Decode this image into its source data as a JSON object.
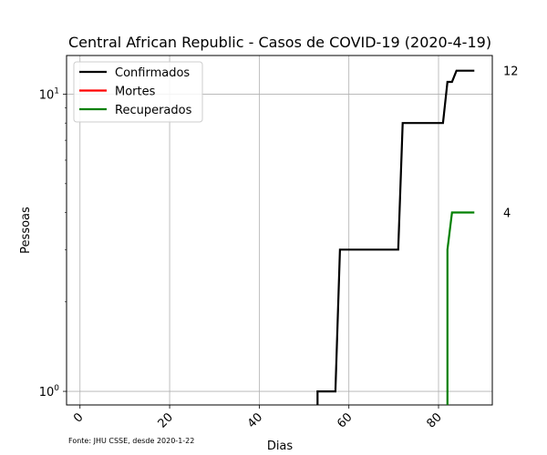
{
  "chart_data": {
    "type": "line",
    "title": "Central African Republic - Casos de COVID-19 (2020-4-19)",
    "xlabel": "Dias",
    "ylabel": "Pessoas",
    "yscale": "log",
    "xlim": [
      -3,
      92
    ],
    "ylim": [
      0.9,
      13.5
    ],
    "xticks": [
      0,
      20,
      40,
      60,
      80
    ],
    "xtick_labels": [
      "0",
      "20",
      "40",
      "60",
      "80"
    ],
    "yticks": [
      1,
      10
    ],
    "ytick_label_base": "10",
    "ytick_label_exponents": [
      "0",
      "1"
    ],
    "grid": true,
    "legend_position": "top-left",
    "series": [
      {
        "name": "Confirmados",
        "color": "#000000",
        "points": [
          [
            53,
            0.9
          ],
          [
            53,
            1
          ],
          [
            57,
            1
          ],
          [
            58,
            3
          ],
          [
            71,
            3
          ],
          [
            72,
            8
          ],
          [
            81,
            8
          ],
          [
            82,
            11
          ],
          [
            83,
            11
          ],
          [
            84,
            12
          ],
          [
            88,
            12
          ]
        ]
      },
      {
        "name": "Mortes",
        "color": "#ff0000",
        "points": []
      },
      {
        "name": "Recuperados",
        "color": "#008000",
        "points": [
          [
            82,
            0.9
          ],
          [
            82,
            3
          ],
          [
            83,
            4
          ],
          [
            88,
            4
          ]
        ]
      }
    ],
    "end_labels": [
      {
        "text": "12",
        "value": 12
      },
      {
        "text": "4",
        "value": 4
      }
    ],
    "source_note": "Fonte: JHU CSSE, desde 2020-1-22"
  }
}
